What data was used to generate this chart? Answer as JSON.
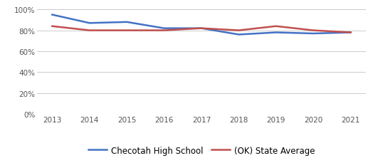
{
  "years": [
    2013,
    2014,
    2015,
    2016,
    2017,
    2018,
    2019,
    2020,
    2021
  ],
  "checotah": [
    0.95,
    0.87,
    0.88,
    0.82,
    0.82,
    0.76,
    0.78,
    0.77,
    0.78
  ],
  "ok_state": [
    0.84,
    0.8,
    0.8,
    0.8,
    0.82,
    0.8,
    0.84,
    0.8,
    0.78
  ],
  "checotah_color": "#4472C4",
  "ok_state_color": "#C0504D",
  "checotah_label": "Checotah High School",
  "ok_state_label": "(OK) State Average",
  "ylim": [
    0,
    1.05
  ],
  "yticks": [
    0,
    0.2,
    0.4,
    0.6,
    0.8,
    1.0
  ],
  "ytick_labels": [
    "0%",
    "20%",
    "40%",
    "60%",
    "80%",
    "100%"
  ],
  "background_color": "#ffffff",
  "grid_color": "#cccccc",
  "line_width": 1.8,
  "legend_fontsize": 8.5,
  "tick_fontsize": 7.5
}
